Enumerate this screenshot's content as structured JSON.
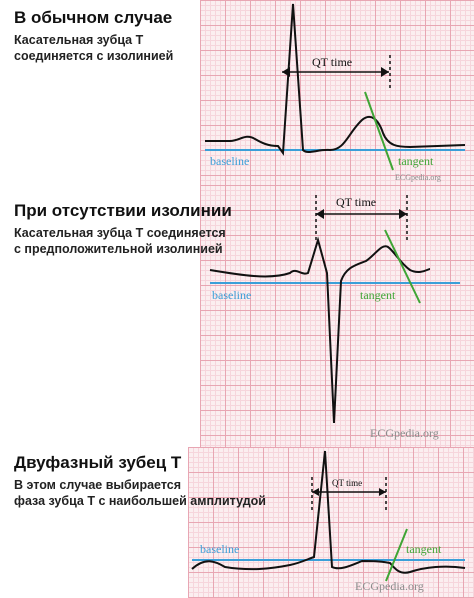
{
  "panels": [
    {
      "title": "В обычном случае",
      "description": [
        "Касательная зубца Т",
        "соединяется с изолинией"
      ],
      "labels": {
        "interval": "QT time",
        "baseline": "baseline",
        "tangent": "tangent",
        "watermark": "ECGpedia.org"
      }
    },
    {
      "title": "При отсутствии изолинии",
      "description": [
        "Касательная зубца Т соединяется",
        "с предположительной изолинией"
      ],
      "labels": {
        "interval": "QT time",
        "baseline": "baseline",
        "tangent": "tangent",
        "watermark": "ECGpedia.org"
      }
    },
    {
      "title": "Двуфазный зубец Т",
      "description": [
        "В этом случае выбирается",
        "фаза зубца Т с наибольшей амплитудой"
      ],
      "labels": {
        "interval": "QT time",
        "baseline": "baseline",
        "tangent": "tangent",
        "watermark": "ECGpedia.org"
      }
    }
  ],
  "colors": {
    "trace": "#111111",
    "baseline": "#3a9fd8",
    "tangent": "#3fa535",
    "grid_major": "#e8a6b3",
    "grid_minor": "#f6d5dc"
  }
}
